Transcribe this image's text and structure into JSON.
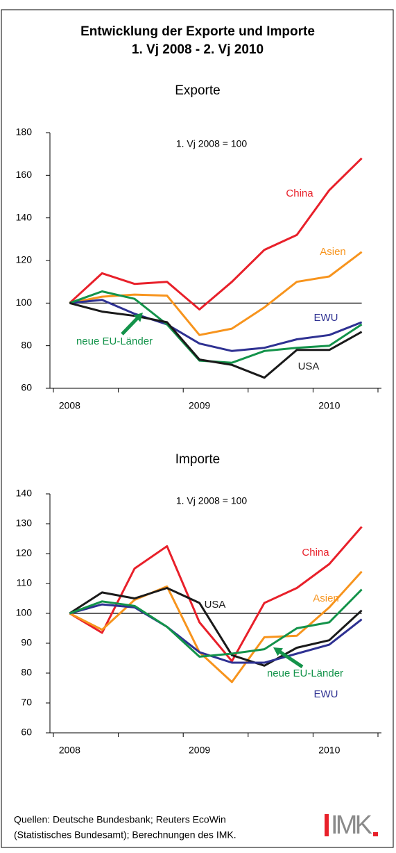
{
  "header": {
    "title": [
      "Entwicklung der Exporte und Importe",
      "1. Vj 2008 - 2. Vj 2010"
    ]
  },
  "chart_data": [
    {
      "type": "line",
      "title": "Exporte",
      "annotation": "1. Vj 2008 = 100",
      "categories": [
        "2008",
        null,
        null,
        null,
        "2009",
        null,
        null,
        null,
        "2010",
        null
      ],
      "ylim": [
        60,
        180
      ],
      "yticks": [
        60,
        80,
        100,
        120,
        140,
        160,
        180
      ],
      "reference_line": 100,
      "series": [
        {
          "name": "China",
          "color": "#e8202a",
          "values": [
            100,
            114,
            109,
            110,
            97,
            110,
            125,
            132,
            153,
            168
          ]
        },
        {
          "name": "Asien",
          "color": "#f7941d",
          "values": [
            100,
            103,
            104,
            103.5,
            85,
            88,
            98,
            110,
            112.5,
            124
          ]
        },
        {
          "name": "EWU",
          "color": "#2e3192",
          "values": [
            100,
            101.5,
            95,
            90,
            81,
            77.5,
            79,
            83,
            85,
            91
          ]
        },
        {
          "name": "neue EU-Länder",
          "color": "#13934a",
          "values": [
            100,
            105.5,
            102,
            90,
            73,
            72,
            77.5,
            79,
            80,
            90
          ]
        },
        {
          "name": "USA",
          "color": "#1a1a1a",
          "values": [
            100,
            96,
            94,
            91,
            73.5,
            71,
            65,
            78,
            78,
            86.5
          ]
        }
      ]
    },
    {
      "type": "line",
      "title": "Importe",
      "annotation": "1. Vj 2008 = 100",
      "categories": [
        "2008",
        null,
        null,
        null,
        "2009",
        null,
        null,
        null,
        "2010",
        null
      ],
      "ylim": [
        60,
        140
      ],
      "yticks": [
        60,
        70,
        80,
        90,
        100,
        110,
        120,
        130,
        140
      ],
      "reference_line": 100,
      "series": [
        {
          "name": "China",
          "color": "#e8202a",
          "values": [
            100,
            93.5,
            115,
            122.5,
            97,
            84,
            103.5,
            108.5,
            116.5,
            129
          ]
        },
        {
          "name": "Asien",
          "color": "#f7941d",
          "values": [
            100,
            94.5,
            104.5,
            109,
            87,
            77,
            92,
            92.5,
            102,
            114
          ]
        },
        {
          "name": "USA",
          "color": "#1a1a1a",
          "values": [
            100,
            107,
            105,
            108.5,
            103.5,
            86,
            82.5,
            88.5,
            91,
            101
          ]
        },
        {
          "name": "EWU",
          "color": "#2e3192",
          "values": [
            100,
            103,
            102,
            95.5,
            87,
            83.5,
            83.5,
            86.5,
            89.5,
            98
          ]
        },
        {
          "name": "neue EU-Länder",
          "color": "#13934a",
          "values": [
            100,
            104,
            102.5,
            95.5,
            85.5,
            86.5,
            88,
            95,
            97,
            108
          ]
        }
      ]
    }
  ],
  "footer": {
    "source": [
      "Quellen: Deutsche Bundesbank; Reuters EcoWin",
      "(Statistisches Bundesamt); Berechnungen des IMK."
    ],
    "logo": "IMK"
  }
}
